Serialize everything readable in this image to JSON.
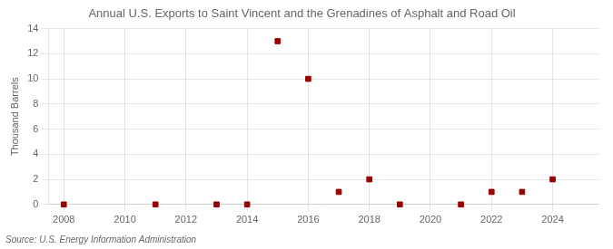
{
  "chart_data": {
    "type": "scatter",
    "title": "Annual U.S. Exports to Saint Vincent and the Grenadines of Asphalt and Road Oil",
    "ylabel": "Thousand Barrels",
    "source": "Source: U.S. Energy Information Administration",
    "x": [
      2008,
      2011,
      2013,
      2014,
      2015,
      2016,
      2017,
      2018,
      2019,
      2021,
      2022,
      2023,
      2024
    ],
    "values": [
      0,
      0,
      0,
      0,
      13,
      10,
      1,
      2,
      0,
      0,
      1,
      1,
      2
    ],
    "color": "#990000",
    "marker": "square",
    "xlim": [
      2007.5,
      2025.5
    ],
    "xticks": [
      2008,
      2010,
      2012,
      2014,
      2016,
      2018,
      2020,
      2022,
      2024
    ],
    "ylim": [
      0,
      14
    ],
    "yticks": [
      0,
      2,
      4,
      6,
      8,
      10,
      12,
      14
    ],
    "grid": true
  }
}
